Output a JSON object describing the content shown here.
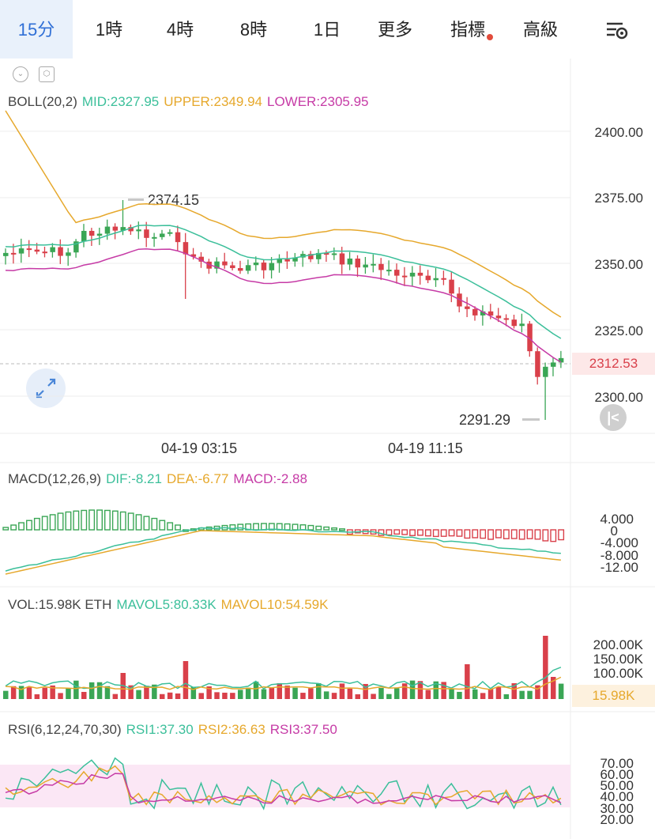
{
  "tabs": [
    {
      "label": "15分",
      "active": true
    },
    {
      "label": "1時"
    },
    {
      "label": "4時"
    },
    {
      "label": "8時"
    },
    {
      "label": "1日"
    },
    {
      "label": "更多"
    },
    {
      "label": "指標"
    },
    {
      "label": "高級"
    }
  ],
  "boll": {
    "name": "BOLL(20,2)",
    "mid": "MID:2327.95",
    "upper": "UPPER:2349.94",
    "lower": "LOWER:2305.95",
    "price_axis": [
      "2400.00",
      "2375.00",
      "2350.00",
      "2325.00",
      "2300.00"
    ],
    "current_price": "2312.53",
    "high_label": "2374.15",
    "low_label": "2291.29"
  },
  "time_axis": [
    "04-19 03:15",
    "04-19 11:15"
  ],
  "macd": {
    "name": "MACD(12,26,9)",
    "dif": "DIF:-8.21",
    "dea": "DEA:-6.77",
    "macd": "MACD:-2.88",
    "axis": [
      "4.000",
      "0",
      "-4.000",
      "-8.000",
      "-12.00"
    ]
  },
  "vol": {
    "name": "VOL:15.98K ETH",
    "mavol5": "MAVOL5:80.33K",
    "mavol10": "MAVOL10:54.59K",
    "axis": [
      "200.00K",
      "150.00K",
      "100.00K"
    ],
    "current": "15.98K"
  },
  "rsi": {
    "name": "RSI(6,12,24,70,30)",
    "rsi1": "RSI1:37.30",
    "rsi2": "RSI2:36.63",
    "rsi3": "RSI3:37.50",
    "axis": [
      "70.00",
      "60.00",
      "50.00",
      "40.00",
      "30.00",
      "20.00"
    ]
  },
  "colors": {
    "up": "#3aa655",
    "down": "#d9404a",
    "mid": "#3bbf9a",
    "upper": "#e6a82c",
    "lower": "#c63ba6",
    "accent": "#2f6fd6",
    "rsi_band": "#fbe7f5"
  },
  "icons": [
    "chevron-down-icon",
    "hexagon-settings-icon",
    "expand-icon",
    "scroll-to-latest-icon",
    "chart-settings-icon"
  ]
}
